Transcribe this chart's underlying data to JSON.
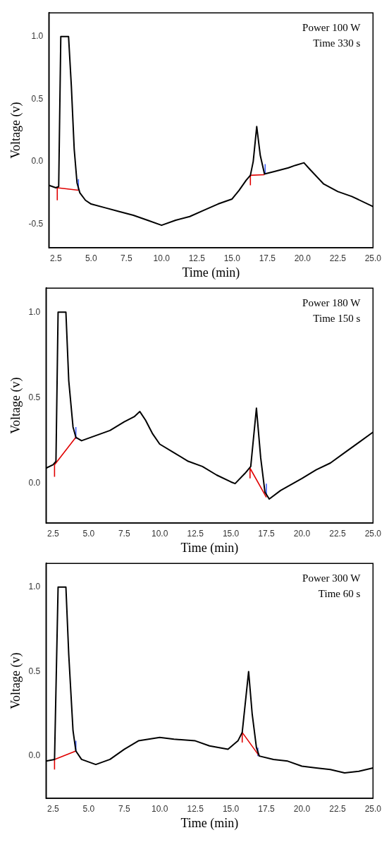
{
  "chart_data": [
    {
      "type": "line",
      "xlabel": "Time (min)",
      "ylabel": "Voltage (v)",
      "annotations": [
        "Power 100 W",
        "Time 330 s"
      ],
      "xlim": [
        2.0,
        25.0
      ],
      "ylim": [
        -0.69,
        1.19
      ],
      "xticks": [
        {
          "value": 2.5,
          "label": "2.5"
        },
        {
          "value": 5,
          "label": "5.0"
        },
        {
          "value": 7.5,
          "label": "7.5"
        },
        {
          "value": 10,
          "label": "10.0"
        },
        {
          "value": 12.5,
          "label": "12.5"
        },
        {
          "value": 15,
          "label": "15.0"
        },
        {
          "value": 17.5,
          "label": "17.5"
        },
        {
          "value": 20,
          "label": "20.0"
        },
        {
          "value": 22.5,
          "label": "22.5"
        },
        {
          "value": 25,
          "label": "25.0"
        }
      ],
      "yticks": [
        {
          "value": -0.5,
          "label": "-0.5"
        },
        {
          "value": 0,
          "label": "0.0"
        },
        {
          "value": 0.5,
          "label": "0.5"
        },
        {
          "value": 1,
          "label": "1.0"
        }
      ],
      "grid": false,
      "legend": false,
      "series": [
        {
          "color": "#000000",
          "x": [
            2.0,
            2.5,
            2.7,
            2.85,
            3.4,
            3.6,
            3.8,
            4.0,
            4.2,
            4.6,
            5.0,
            6.0,
            7.0,
            8.0,
            9.0,
            10.0,
            11.0,
            12.0,
            13.0,
            14.0,
            15.0,
            15.5,
            16.0,
            16.3,
            16.5,
            16.75,
            17.0,
            17.3,
            18.0,
            19.0,
            19.5,
            20.1,
            20.5,
            21.5,
            22.5,
            23.5,
            25.0
          ],
          "values": [
            -0.19,
            -0.21,
            -0.2,
            1.0,
            1.0,
            0.6,
            0.1,
            -0.17,
            -0.25,
            -0.31,
            -0.34,
            -0.37,
            -0.4,
            -0.43,
            -0.47,
            -0.51,
            -0.47,
            -0.44,
            -0.39,
            -0.34,
            -0.3,
            -0.23,
            -0.15,
            -0.11,
            0.0,
            0.28,
            0.05,
            -0.1,
            -0.08,
            -0.05,
            -0.03,
            -0.01,
            -0.06,
            -0.18,
            -0.24,
            -0.28,
            -0.36
          ]
        },
        {
          "color": "#e00000",
          "x": [
            2.6,
            4.1,
            null,
            16.3,
            17.3,
            null,
            2.6,
            2.6,
            null,
            16.3,
            16.3
          ],
          "values": [
            -0.21,
            -0.23,
            null,
            -0.11,
            -0.105,
            null,
            -0.31,
            -0.21,
            null,
            -0.19,
            -0.11
          ]
        },
        {
          "color": "#4060ff",
          "x": [
            4.1,
            4.1,
            null,
            17.35,
            17.35
          ],
          "values": [
            -0.23,
            -0.14,
            null,
            -0.1,
            -0.02
          ]
        }
      ]
    },
    {
      "type": "line",
      "xlabel": "Time (min)",
      "ylabel": "Voltage (v)",
      "annotations": [
        "Power 180 W",
        "Time 150 s"
      ],
      "xlim": [
        2.0,
        25.0
      ],
      "ylim": [
        -0.23,
        1.14
      ],
      "xticks": [
        {
          "value": 2.5,
          "label": "2.5"
        },
        {
          "value": 5,
          "label": "5.0"
        },
        {
          "value": 7.5,
          "label": "7.5"
        },
        {
          "value": 10,
          "label": "10.0"
        },
        {
          "value": 12.5,
          "label": "12.5"
        },
        {
          "value": 15,
          "label": "15.0"
        },
        {
          "value": 17.5,
          "label": "17.5"
        },
        {
          "value": 20,
          "label": "20.0"
        },
        {
          "value": 22.5,
          "label": "22.5"
        },
        {
          "value": 25,
          "label": "25.0"
        }
      ],
      "yticks": [
        {
          "value": 0,
          "label": "0.0"
        },
        {
          "value": 0.5,
          "label": "0.5"
        },
        {
          "value": 1,
          "label": "1.0"
        }
      ],
      "grid": false,
      "legend": false,
      "series": [
        {
          "color": "#000000",
          "x": [
            2.0,
            2.5,
            2.7,
            2.85,
            3.4,
            3.6,
            3.9,
            4.1,
            4.5,
            5.5,
            6.5,
            7.5,
            8.2,
            8.6,
            9.0,
            9.5,
            10.0,
            11.0,
            12.0,
            13.0,
            14.0,
            15.0,
            15.3,
            16.0,
            16.4,
            16.8,
            17.1,
            17.4,
            17.7,
            18.5,
            20.0,
            21.0,
            22.0,
            23.0,
            24.0,
            25.0
          ],
          "values": [
            0.09,
            0.11,
            0.13,
            1.0,
            1.0,
            0.6,
            0.33,
            0.27,
            0.25,
            0.28,
            0.31,
            0.36,
            0.39,
            0.42,
            0.37,
            0.29,
            0.23,
            0.18,
            0.13,
            0.1,
            0.05,
            0.01,
            0.0,
            0.06,
            0.1,
            0.44,
            0.15,
            -0.05,
            -0.09,
            -0.04,
            0.03,
            0.08,
            0.12,
            0.18,
            0.24,
            0.3
          ]
        },
        {
          "color": "#e00000",
          "x": [
            2.6,
            4.1,
            null,
            16.35,
            17.5,
            null,
            2.6,
            2.6,
            null,
            16.35,
            16.35
          ],
          "values": [
            0.11,
            0.27,
            null,
            0.09,
            -0.08,
            null,
            0.04,
            0.11,
            null,
            0.03,
            0.09
          ]
        },
        {
          "color": "#4060ff",
          "x": [
            4.1,
            4.1,
            null,
            17.5,
            17.5
          ],
          "values": [
            0.26,
            0.33,
            null,
            -0.06,
            0.0
          ]
        }
      ]
    },
    {
      "type": "line",
      "xlabel": "Time (min)",
      "ylabel": "Voltage (v)",
      "annotations": [
        "Power 300 W",
        "Time 60 s"
      ],
      "xlim": [
        2.0,
        25.0
      ],
      "ylim": [
        -0.25,
        1.14
      ],
      "xticks": [
        {
          "value": 2.5,
          "label": "2.5"
        },
        {
          "value": 5,
          "label": "5.0"
        },
        {
          "value": 7.5,
          "label": "7.5"
        },
        {
          "value": 10,
          "label": "10.0"
        },
        {
          "value": 12.5,
          "label": "12.5"
        },
        {
          "value": 15,
          "label": "15.0"
        },
        {
          "value": 17.5,
          "label": "17.5"
        },
        {
          "value": 20,
          "label": "20.0"
        },
        {
          "value": 22.5,
          "label": "22.5"
        },
        {
          "value": 25,
          "label": "25.0"
        }
      ],
      "yticks": [
        {
          "value": 0,
          "label": "0.0"
        },
        {
          "value": 0.5,
          "label": "0.5"
        },
        {
          "value": 1,
          "label": "1.0"
        }
      ],
      "grid": false,
      "legend": false,
      "series": [
        {
          "color": "#000000",
          "x": [
            2.0,
            2.6,
            2.85,
            3.4,
            3.6,
            3.9,
            4.1,
            4.5,
            5.5,
            6.5,
            7.5,
            8.5,
            10.0,
            11.0,
            12.5,
            13.5,
            14.8,
            15.5,
            15.8,
            16.0,
            16.25,
            16.5,
            16.8,
            17.0,
            18.0,
            19.0,
            20.0,
            21.0,
            22.0,
            23.0,
            24.0,
            25.0
          ],
          "values": [
            -0.03,
            -0.02,
            1.0,
            1.0,
            0.6,
            0.15,
            0.03,
            -0.02,
            -0.05,
            -0.02,
            0.04,
            0.09,
            0.11,
            0.1,
            0.09,
            0.06,
            0.04,
            0.09,
            0.14,
            0.3,
            0.5,
            0.25,
            0.05,
            0.0,
            -0.02,
            -0.03,
            -0.06,
            -0.07,
            -0.08,
            -0.1,
            -0.09,
            -0.07
          ]
        },
        {
          "color": "#e00000",
          "x": [
            2.6,
            4.1,
            null,
            15.8,
            17.0,
            null,
            2.6,
            2.6,
            null,
            15.8,
            15.8
          ],
          "values": [
            -0.02,
            0.03,
            null,
            0.14,
            0.0,
            null,
            -0.08,
            -0.02,
            null,
            0.08,
            0.14
          ]
        },
        {
          "color": "#4060ff",
          "x": [
            4.1,
            4.1,
            null,
            16.9,
            16.9
          ],
          "values": [
            0.03,
            0.09,
            null,
            0.0,
            0.05
          ]
        }
      ]
    }
  ]
}
